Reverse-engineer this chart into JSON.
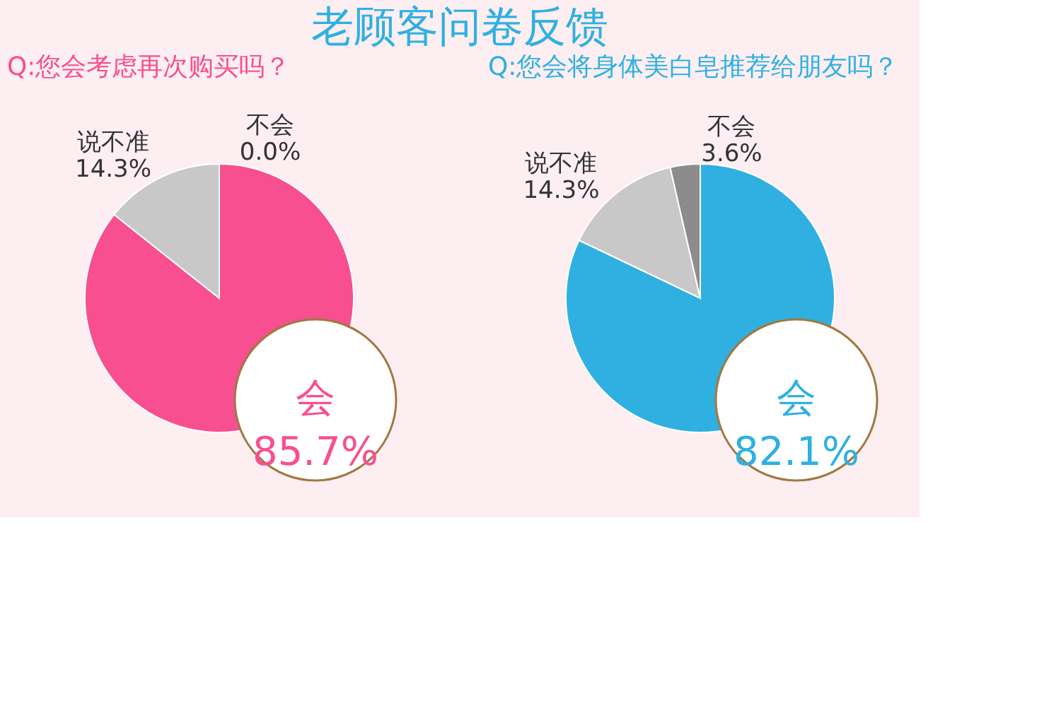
{
  "chart_data": [
    {
      "type": "pie",
      "title": "Q:您会考虑再次购买吗？",
      "annotations": [
        "老顾客问卷反馈"
      ],
      "categories": [
        "会",
        "说不准",
        "不会"
      ],
      "values": [
        85.7,
        14.3,
        0.0
      ],
      "value_labels": [
        "85.7%",
        "14.3%",
        "0.0%"
      ],
      "colors": [
        "#f74f8f",
        "#c8c8c8",
        "#8c8c8c"
      ],
      "data_labels": true,
      "legend": false
    },
    {
      "type": "pie",
      "title": "Q:您会将身体美白皂推荐给朋友吗？",
      "categories": [
        "会",
        "说不准",
        "不会"
      ],
      "values": [
        82.1,
        14.3,
        3.6
      ],
      "value_labels": [
        "82.1%",
        "14.3%",
        "3.6%"
      ],
      "colors": [
        "#2fb0e0",
        "#c8c8c8",
        "#8c8c8c"
      ],
      "data_labels": true,
      "legend": false
    }
  ]
}
